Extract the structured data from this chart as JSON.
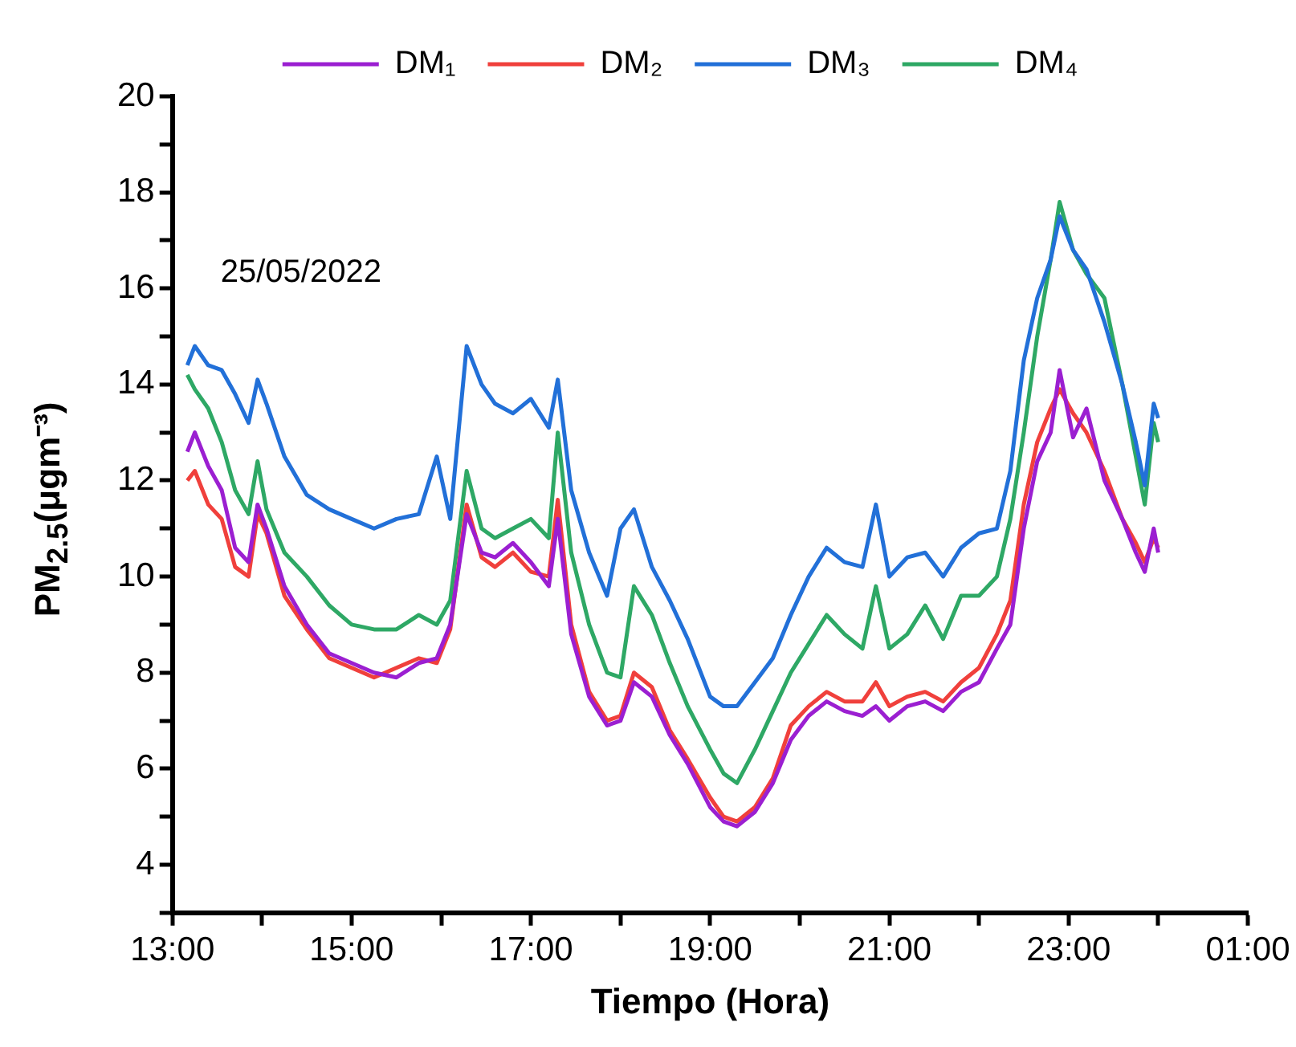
{
  "chart_data": {
    "type": "line",
    "xlabel": "Tiempo (Hora)",
    "ylabel": "PM$_{2.5}$(μgm⁻³)",
    "annotations": [
      "25/05/2022"
    ],
    "x": [
      "2022-05-25T13:10",
      "2022-05-25T13:15",
      "2022-05-25T13:24",
      "2022-05-25T13:33",
      "2022-05-25T13:42",
      "2022-05-25T13:51",
      "2022-05-25T13:57",
      "2022-05-25T14:03",
      "2022-05-25T14:15",
      "2022-05-25T14:30",
      "2022-05-25T14:45",
      "2022-05-25T15:00",
      "2022-05-25T15:15",
      "2022-05-25T15:30",
      "2022-05-25T15:45",
      "2022-05-25T15:57",
      "2022-05-25T16:06",
      "2022-05-25T16:17",
      "2022-05-25T16:27",
      "2022-05-25T16:36",
      "2022-05-25T16:48",
      "2022-05-25T17:00",
      "2022-05-25T17:12",
      "2022-05-25T17:18",
      "2022-05-25T17:27",
      "2022-05-25T17:39",
      "2022-05-25T17:51",
      "2022-05-25T18:00",
      "2022-05-25T18:09",
      "2022-05-25T18:21",
      "2022-05-25T18:33",
      "2022-05-25T18:45",
      "2022-05-25T19:00",
      "2022-05-25T19:09",
      "2022-05-25T19:18",
      "2022-05-25T19:30",
      "2022-05-25T19:42",
      "2022-05-25T19:54",
      "2022-05-25T20:06",
      "2022-05-25T20:18",
      "2022-05-25T20:30",
      "2022-05-25T20:42",
      "2022-05-25T20:51",
      "2022-05-25T21:00",
      "2022-05-25T21:12",
      "2022-05-25T21:24",
      "2022-05-25T21:36",
      "2022-05-25T21:48",
      "2022-05-25T22:00",
      "2022-05-25T22:12",
      "2022-05-25T22:21",
      "2022-05-25T22:30",
      "2022-05-25T22:39",
      "2022-05-25T22:48",
      "2022-05-25T22:54",
      "2022-05-25T23:03",
      "2022-05-25T23:12",
      "2022-05-25T23:24",
      "2022-05-25T23:36",
      "2022-05-25T23:45",
      "2022-05-25T23:51",
      "2022-05-25T23:57",
      "2022-05-26T00:00"
    ],
    "series": [
      {
        "name": "DM₁",
        "color": "#9b1fd1",
        "values": [
          12.6,
          13.0,
          12.3,
          11.8,
          10.6,
          10.3,
          11.5,
          11.0,
          9.8,
          9.0,
          8.4,
          8.2,
          8.0,
          7.9,
          8.2,
          8.3,
          9.0,
          11.3,
          10.5,
          10.4,
          10.7,
          10.3,
          9.8,
          11.2,
          8.8,
          7.5,
          6.9,
          7.0,
          7.8,
          7.5,
          6.7,
          6.1,
          5.2,
          4.9,
          4.8,
          5.1,
          5.7,
          6.6,
          7.1,
          7.4,
          7.2,
          7.1,
          7.3,
          7.0,
          7.3,
          7.4,
          7.2,
          7.6,
          7.8,
          8.5,
          9.0,
          11.0,
          12.4,
          13.0,
          14.3,
          12.9,
          13.5,
          12.0,
          11.2,
          10.5,
          10.1,
          11.0,
          10.5
        ]
      },
      {
        "name": "DM₂",
        "color": "#f0403c",
        "values": [
          12.0,
          12.2,
          11.5,
          11.2,
          10.2,
          10.0,
          11.3,
          10.9,
          9.6,
          8.9,
          8.3,
          8.1,
          7.9,
          8.1,
          8.3,
          8.2,
          8.9,
          11.5,
          10.4,
          10.2,
          10.5,
          10.1,
          10.0,
          11.6,
          9.0,
          7.6,
          7.0,
          7.1,
          8.0,
          7.7,
          6.8,
          6.2,
          5.4,
          5.0,
          4.9,
          5.2,
          5.8,
          6.9,
          7.3,
          7.6,
          7.4,
          7.4,
          7.8,
          7.3,
          7.5,
          7.6,
          7.4,
          7.8,
          8.1,
          8.8,
          9.5,
          11.5,
          12.8,
          13.5,
          13.9,
          13.4,
          13.0,
          12.2,
          11.2,
          10.7,
          10.3,
          10.8,
          10.6
        ]
      },
      {
        "name": "DM₃",
        "color": "#2270d8",
        "values": [
          14.4,
          14.8,
          14.4,
          14.3,
          13.8,
          13.2,
          14.1,
          13.6,
          12.5,
          11.7,
          11.4,
          11.2,
          11.0,
          11.2,
          11.3,
          12.5,
          11.2,
          14.8,
          14.0,
          13.6,
          13.4,
          13.7,
          13.1,
          14.1,
          11.8,
          10.5,
          9.6,
          11.0,
          11.4,
          10.2,
          9.5,
          8.7,
          7.5,
          7.3,
          7.3,
          7.8,
          8.3,
          9.2,
          10.0,
          10.6,
          10.3,
          10.2,
          11.5,
          10.0,
          10.4,
          10.5,
          10.0,
          10.6,
          10.9,
          11.0,
          12.2,
          14.5,
          15.8,
          16.6,
          17.5,
          16.8,
          16.4,
          15.3,
          14.0,
          12.8,
          11.9,
          13.6,
          13.3
        ]
      },
      {
        "name": "DM₄",
        "color": "#2ea865",
        "values": [
          14.2,
          13.9,
          13.5,
          12.8,
          11.8,
          11.3,
          12.4,
          11.4,
          10.5,
          10.0,
          9.4,
          9.0,
          8.9,
          8.9,
          9.2,
          9.0,
          9.5,
          12.2,
          11.0,
          10.8,
          11.0,
          11.2,
          10.8,
          13.0,
          10.5,
          9.0,
          8.0,
          7.9,
          9.8,
          9.2,
          8.2,
          7.3,
          6.4,
          5.9,
          5.7,
          6.4,
          7.2,
          8.0,
          8.6,
          9.2,
          8.8,
          8.5,
          9.8,
          8.5,
          8.8,
          9.4,
          8.7,
          9.6,
          9.6,
          10.0,
          11.2,
          13.0,
          15.0,
          16.6,
          17.8,
          16.8,
          16.3,
          15.8,
          14.0,
          12.5,
          11.5,
          13.2,
          12.8
        ]
      }
    ],
    "xlim": [
      "2022-05-25T13:00",
      "2022-05-26T01:00"
    ],
    "xticks": [
      {
        "value": "2022-05-25T13:00",
        "label": "13:00"
      },
      {
        "value": "2022-05-25T14:00",
        "label": null
      },
      {
        "value": "2022-05-25T15:00",
        "label": "15:00"
      },
      {
        "value": "2022-05-25T16:00",
        "label": null
      },
      {
        "value": "2022-05-25T17:00",
        "label": "17:00"
      },
      {
        "value": "2022-05-25T18:00",
        "label": null
      },
      {
        "value": "2022-05-25T19:00",
        "label": "19:00"
      },
      {
        "value": "2022-05-25T20:00",
        "label": null
      },
      {
        "value": "2022-05-25T21:00",
        "label": "21:00"
      },
      {
        "value": "2022-05-25T22:00",
        "label": null
      },
      {
        "value": "2022-05-25T23:00",
        "label": "23:00"
      },
      {
        "value": "2022-05-26T00:00",
        "label": null
      },
      {
        "value": "2022-05-26T01:00",
        "label": "01:00"
      }
    ],
    "ylim": [
      3,
      20
    ],
    "yticks": [
      {
        "value": 3,
        "label": null
      },
      4,
      {
        "value": 5,
        "label": null
      },
      6,
      {
        "value": 7,
        "label": null
      },
      8,
      {
        "value": 9,
        "label": null
      },
      10,
      {
        "value": 11,
        "label": null
      },
      12,
      {
        "value": 13,
        "label": null
      },
      14,
      {
        "value": 15,
        "label": null
      },
      16,
      {
        "value": 17,
        "label": null
      },
      18,
      {
        "value": 19,
        "label": null
      },
      20
    ],
    "grid": false,
    "legend": "top",
    "marker": "none",
    "line_style": "solid"
  }
}
